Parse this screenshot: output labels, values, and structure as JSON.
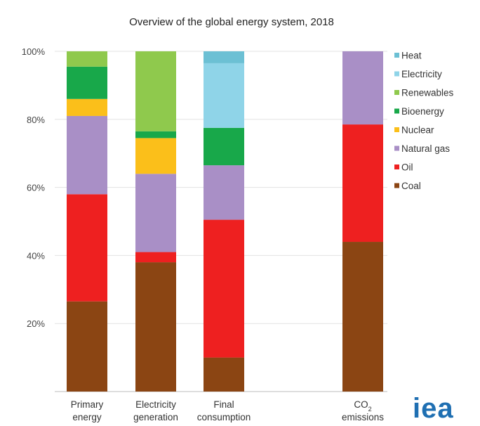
{
  "chart_data": {
    "type": "bar",
    "stacked": true,
    "title": "Overview of the global energy system, 2018",
    "categories": [
      {
        "lines": [
          "Primary",
          "energy"
        ]
      },
      {
        "lines": [
          "Electricity",
          "generation"
        ]
      },
      {
        "lines": [
          "Final",
          "consumption"
        ]
      },
      {
        "lines": [
          "CO2",
          "emissions"
        ]
      }
    ],
    "y_ticks": [
      "20%",
      "40%",
      "60%",
      "80%",
      "100%"
    ],
    "ylim": [
      0,
      100
    ],
    "grid": true,
    "legend_position": "right",
    "series": [
      {
        "name": "Coal",
        "color": "#8b4513",
        "values": [
          26.5,
          38.0,
          10.0,
          44.0
        ]
      },
      {
        "name": "Oil",
        "color": "#ee2020",
        "values": [
          31.5,
          3.0,
          40.5,
          34.5
        ]
      },
      {
        "name": "Natural gas",
        "color": "#a98fc6",
        "values": [
          23.0,
          23.0,
          16.0,
          21.5
        ]
      },
      {
        "name": "Nuclear",
        "color": "#fbbf1a",
        "values": [
          5.0,
          10.5,
          0,
          0
        ]
      },
      {
        "name": "Bioenergy",
        "color": "#18a84a",
        "values": [
          9.5,
          2.0,
          11.0,
          0
        ]
      },
      {
        "name": "Renewables",
        "color": "#8fc94d",
        "values": [
          4.5,
          23.5,
          0,
          0
        ]
      },
      {
        "name": "Electricity",
        "color": "#8fd4e8",
        "values": [
          0,
          0,
          19.0,
          0
        ]
      },
      {
        "name": "Heat",
        "color": "#6cc0d4",
        "values": [
          0,
          0,
          3.5,
          0
        ]
      }
    ]
  },
  "logo_text": "iea"
}
